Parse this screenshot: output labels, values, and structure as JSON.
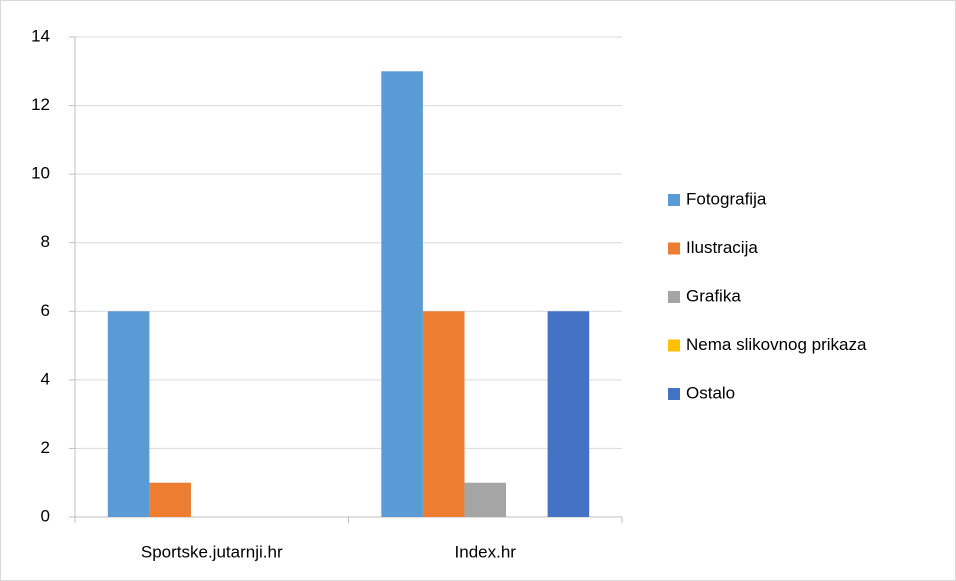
{
  "chart_data": {
    "type": "bar",
    "categories": [
      "Sportske.jutarnji.hr",
      "Index.hr"
    ],
    "series": [
      {
        "name": "Fotografija",
        "color": "#5b9bd5",
        "values": [
          6,
          13
        ]
      },
      {
        "name": "Ilustracija",
        "color": "#ed7d31",
        "values": [
          1,
          6
        ]
      },
      {
        "name": "Grafika",
        "color": "#a5a5a5",
        "values": [
          0,
          1
        ]
      },
      {
        "name": "Nema slikovnog prikaza",
        "color": "#ffc000",
        "values": [
          0,
          0
        ]
      },
      {
        "name": "Ostalo",
        "color": "#4472c4",
        "values": [
          0,
          6
        ]
      }
    ],
    "ylim": [
      0,
      14
    ],
    "yticks": [
      0,
      2,
      4,
      6,
      8,
      10,
      12,
      14
    ],
    "grid": true,
    "legend": "right"
  }
}
